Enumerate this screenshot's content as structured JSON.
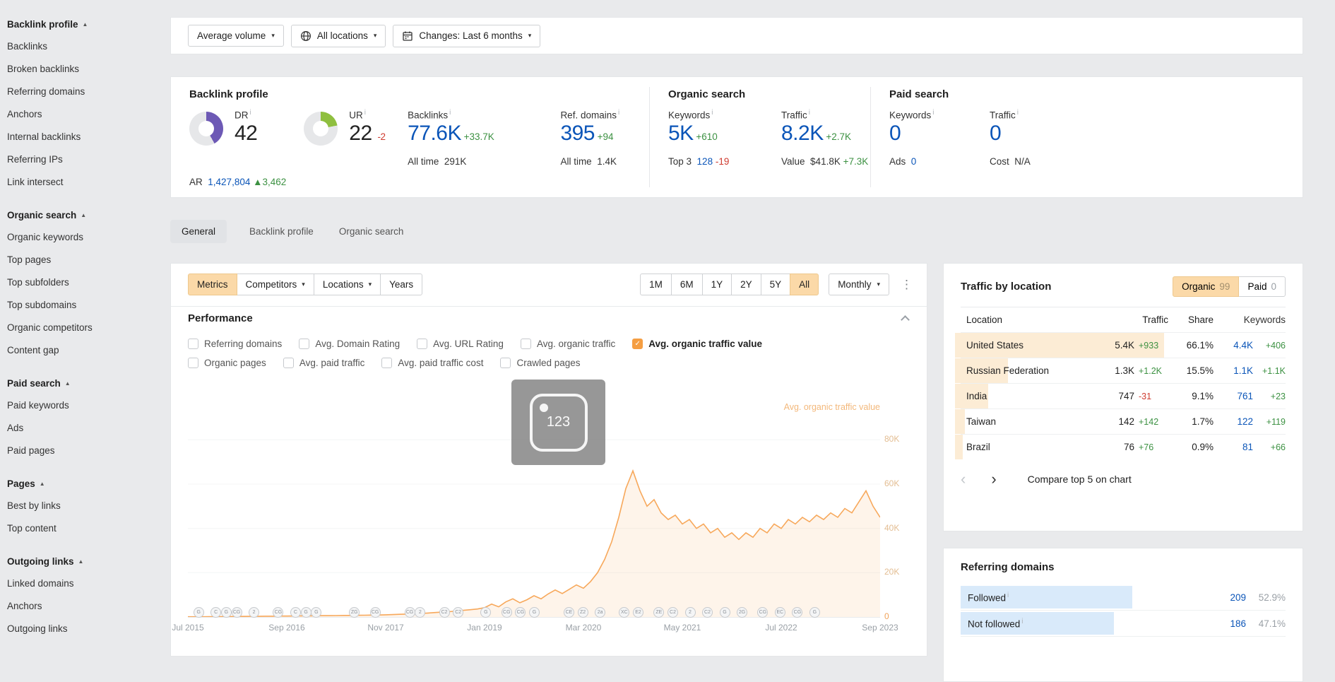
{
  "icons": {
    "caret": "▾",
    "collapse": "▲",
    "kebab": "⋮",
    "prev": "‹",
    "next": "›",
    "info": "i",
    "check": "✓",
    "placeholder_text": "123"
  },
  "colors": {
    "dr": "#6d59b5",
    "ur": "#8fbf3f",
    "donut_track": "#e6e7e9",
    "line": "#f7a85b",
    "line_fill": "rgba(247,168,91,0.13)"
  },
  "sidebar": {
    "sections": [
      {
        "label": "Backlink profile",
        "items": [
          "Backlinks",
          "Broken backlinks",
          "Referring domains",
          "Anchors",
          "Internal backlinks",
          "Referring IPs",
          "Link intersect"
        ]
      },
      {
        "label": "Organic search",
        "items": [
          "Organic keywords",
          "Top pages",
          "Top subfolders",
          "Top subdomains",
          "Organic competitors",
          "Content gap"
        ]
      },
      {
        "label": "Paid search",
        "items": [
          "Paid keywords",
          "Ads",
          "Paid pages"
        ]
      },
      {
        "label": "Pages",
        "items": [
          "Best by links",
          "Top content"
        ]
      },
      {
        "label": "Outgoing links",
        "items": [
          "Linked domains",
          "Anchors",
          "Outgoing links"
        ]
      }
    ]
  },
  "toolbar": {
    "volume": "Average volume",
    "locations": "All locations",
    "changes": "Changes: Last 6 months"
  },
  "overview": {
    "backlink": {
      "title": "Backlink profile",
      "dr_label": "DR",
      "dr": "42",
      "ur_label": "UR",
      "ur": "22",
      "ur_delta": "-2",
      "dr_pct": 42,
      "ur_pct": 22,
      "backlinks_label": "Backlinks",
      "backlinks": "77.6K",
      "backlinks_delta": "+33.7K",
      "alltime_label": "All time",
      "backlinks_alltime": "291K",
      "ref_label": "Ref. domains",
      "ref": "395",
      "ref_delta": "+94",
      "ref_alltime": "1.4K",
      "ar_label": "AR",
      "ar": "1,427,804",
      "ar_delta": "▲3,462"
    },
    "organic": {
      "title": "Organic search",
      "keywords_label": "Keywords",
      "keywords": "5K",
      "keywords_delta": "+610",
      "top3_label": "Top 3",
      "top3": "128",
      "top3_delta": "-19",
      "traffic_label": "Traffic",
      "traffic": "8.2K",
      "traffic_delta": "+2.7K",
      "value_label": "Value",
      "value": "$41.8K",
      "value_delta": "+7.3K"
    },
    "paid": {
      "title": "Paid search",
      "keywords_label": "Keywords",
      "keywords": "0",
      "ads_label": "Ads",
      "ads": "0",
      "traffic_label": "Traffic",
      "traffic": "0",
      "cost_label": "Cost",
      "cost": "N/A"
    }
  },
  "tabs": {
    "items": [
      "General",
      "Backlink profile",
      "Organic search"
    ],
    "active": "General"
  },
  "chart_card": {
    "tools": {
      "metrics": "Metrics",
      "competitors": "Competitors",
      "locations": "Locations",
      "years": "Years",
      "ranges": [
        "1M",
        "6M",
        "1Y",
        "2Y",
        "5Y",
        "All"
      ],
      "active_range": "All",
      "granularity": "Monthly"
    },
    "title": "Performance",
    "metric_rows": [
      [
        {
          "label": "Referring domains",
          "checked": false
        },
        {
          "label": "Avg. Domain Rating",
          "checked": false
        },
        {
          "label": "Avg. URL Rating",
          "checked": false
        },
        {
          "label": "Avg. organic traffic",
          "checked": false
        },
        {
          "label": "Avg. organic traffic value",
          "checked": true
        }
      ],
      [
        {
          "label": "Organic pages",
          "checked": false
        },
        {
          "label": "Avg. paid traffic",
          "checked": false
        },
        {
          "label": "Avg. paid traffic cost",
          "checked": false
        },
        {
          "label": "Crawled pages",
          "checked": false
        }
      ]
    ]
  },
  "chart_data": {
    "type": "area",
    "interval": "monthly",
    "x_start": "Jul 2015",
    "x_end": "Sep 2023",
    "x_ticks": [
      "Jul 2015",
      "Sep 2016",
      "Nov 2017",
      "Jan 2019",
      "Mar 2020",
      "May 2021",
      "Jul 2022",
      "Sep 2023"
    ],
    "x_tick_idx": [
      0,
      14,
      28,
      42,
      56,
      70,
      84,
      98
    ],
    "y_ticks": [
      {
        "label": "80K",
        "v": 80
      },
      {
        "label": "60K",
        "v": 60
      },
      {
        "label": "40K",
        "v": 40
      },
      {
        "label": "20K",
        "v": 20
      },
      {
        "label": "0",
        "v": 0
      }
    ],
    "y_max": 90,
    "units": "thousand USD",
    "series": [
      {
        "name": "Avg. organic traffic value",
        "color": "#f7a85b",
        "values": [
          0.1,
          0.1,
          0.1,
          0.15,
          0.15,
          0.2,
          0.2,
          0.25,
          0.25,
          0.3,
          0.3,
          0.35,
          0.35,
          0.4,
          0.4,
          0.45,
          0.5,
          0.5,
          0.55,
          0.6,
          0.6,
          0.65,
          0.7,
          0.7,
          0.75,
          0.8,
          0.85,
          0.9,
          1.0,
          1.1,
          1.2,
          1.3,
          1.4,
          1.6,
          1.8,
          2.0,
          2.2,
          2.4,
          2.7,
          3.0,
          3.3,
          3.6,
          4.2,
          5.8,
          4.6,
          6.8,
          8.2,
          6.4,
          7.8,
          9.6,
          8.2,
          10.4,
          12.2,
          10.6,
          12.5,
          14.5,
          13.0,
          16.0,
          20.0,
          26.0,
          34.0,
          45.0,
          58.0,
          66.0,
          57.0,
          50.0,
          53.0,
          47.0,
          44.0,
          46.0,
          42.0,
          44.0,
          40.0,
          42.0,
          38.0,
          40.0,
          36.0,
          38.0,
          35.0,
          38.0,
          36.0,
          40.0,
          38.0,
          42.0,
          40.0,
          44.0,
          42.0,
          45.0,
          43.0,
          46.0,
          44.0,
          47.0,
          45.0,
          49.0,
          47.0,
          52.0,
          57.0,
          50.0,
          45.0
        ]
      }
    ],
    "update_badges": [
      {
        "p": 1.5,
        "t": "G"
      },
      {
        "p": 4,
        "t": "C"
      },
      {
        "p": 5.5,
        "t": "G"
      },
      {
        "p": 7,
        "t": "CG"
      },
      {
        "p": 9.5,
        "t": "2"
      },
      {
        "p": 13,
        "t": "CG"
      },
      {
        "p": 15.5,
        "t": "C"
      },
      {
        "p": 17,
        "t": "G"
      },
      {
        "p": 18.5,
        "t": "G"
      },
      {
        "p": 24,
        "t": "ZG"
      },
      {
        "p": 27,
        "t": "CG"
      },
      {
        "p": 32,
        "t": "CG"
      },
      {
        "p": 33.5,
        "t": "2"
      },
      {
        "p": 37,
        "t": "C2"
      },
      {
        "p": 39,
        "t": "C2"
      },
      {
        "p": 43,
        "t": "G"
      },
      {
        "p": 46,
        "t": "CG"
      },
      {
        "p": 48,
        "t": "CG"
      },
      {
        "p": 50,
        "t": "G"
      },
      {
        "p": 55,
        "t": "CE"
      },
      {
        "p": 57,
        "t": "Z2"
      },
      {
        "p": 59.5,
        "t": "2a"
      },
      {
        "p": 63,
        "t": "XC"
      },
      {
        "p": 65,
        "t": "E2"
      },
      {
        "p": 68,
        "t": "ZE"
      },
      {
        "p": 70,
        "t": "C2"
      },
      {
        "p": 72.5,
        "t": "2"
      },
      {
        "p": 75,
        "t": "C2"
      },
      {
        "p": 77.5,
        "t": "G"
      },
      {
        "p": 80,
        "t": "2G"
      },
      {
        "p": 83,
        "t": "CG"
      },
      {
        "p": 85.5,
        "t": "EC"
      },
      {
        "p": 88,
        "t": "CG"
      },
      {
        "p": 90.5,
        "t": "G"
      }
    ]
  },
  "traffic_by_location": {
    "title": "Traffic by location",
    "toggle": {
      "organic_label": "Organic",
      "organic_count": "99",
      "paid_label": "Paid",
      "paid_count": "0"
    },
    "columns": [
      "Location",
      "Traffic",
      "Share",
      "Keywords"
    ],
    "rows": [
      {
        "location": "United States",
        "traffic": "5.4K",
        "traffic_delta": "+933",
        "traffic_delta_dir": "up",
        "share": "66.1%",
        "share_pct": 66.1,
        "keywords": "4.4K",
        "keywords_delta": "+406"
      },
      {
        "location": "Russian Federation",
        "traffic": "1.3K",
        "traffic_delta": "+1.2K",
        "traffic_delta_dir": "up",
        "share": "15.5%",
        "share_pct": 15.5,
        "keywords": "1.1K",
        "keywords_delta": "+1.1K"
      },
      {
        "location": "India",
        "traffic": "747",
        "traffic_delta": "-31",
        "traffic_delta_dir": "down",
        "share": "9.1%",
        "share_pct": 9.1,
        "keywords": "761",
        "keywords_delta": "+23"
      },
      {
        "location": "Taiwan",
        "traffic": "142",
        "traffic_delta": "+142",
        "traffic_delta_dir": "up",
        "share": "1.7%",
        "share_pct": 1.7,
        "keywords": "122",
        "keywords_delta": "+119"
      },
      {
        "location": "Brazil",
        "traffic": "76",
        "traffic_delta": "+76",
        "traffic_delta_dir": "up",
        "share": "0.9%",
        "share_pct": 0.9,
        "keywords": "81",
        "keywords_delta": "+66"
      }
    ],
    "footer": {
      "compare": "Compare top 5 on chart"
    }
  },
  "referring_domains": {
    "title": "Referring domains",
    "rows": [
      {
        "label": "Followed",
        "value": "209",
        "pct": "52.9%",
        "bar": 52.9
      },
      {
        "label": "Not followed",
        "value": "186",
        "pct": "47.1%",
        "bar": 47.1
      }
    ]
  }
}
